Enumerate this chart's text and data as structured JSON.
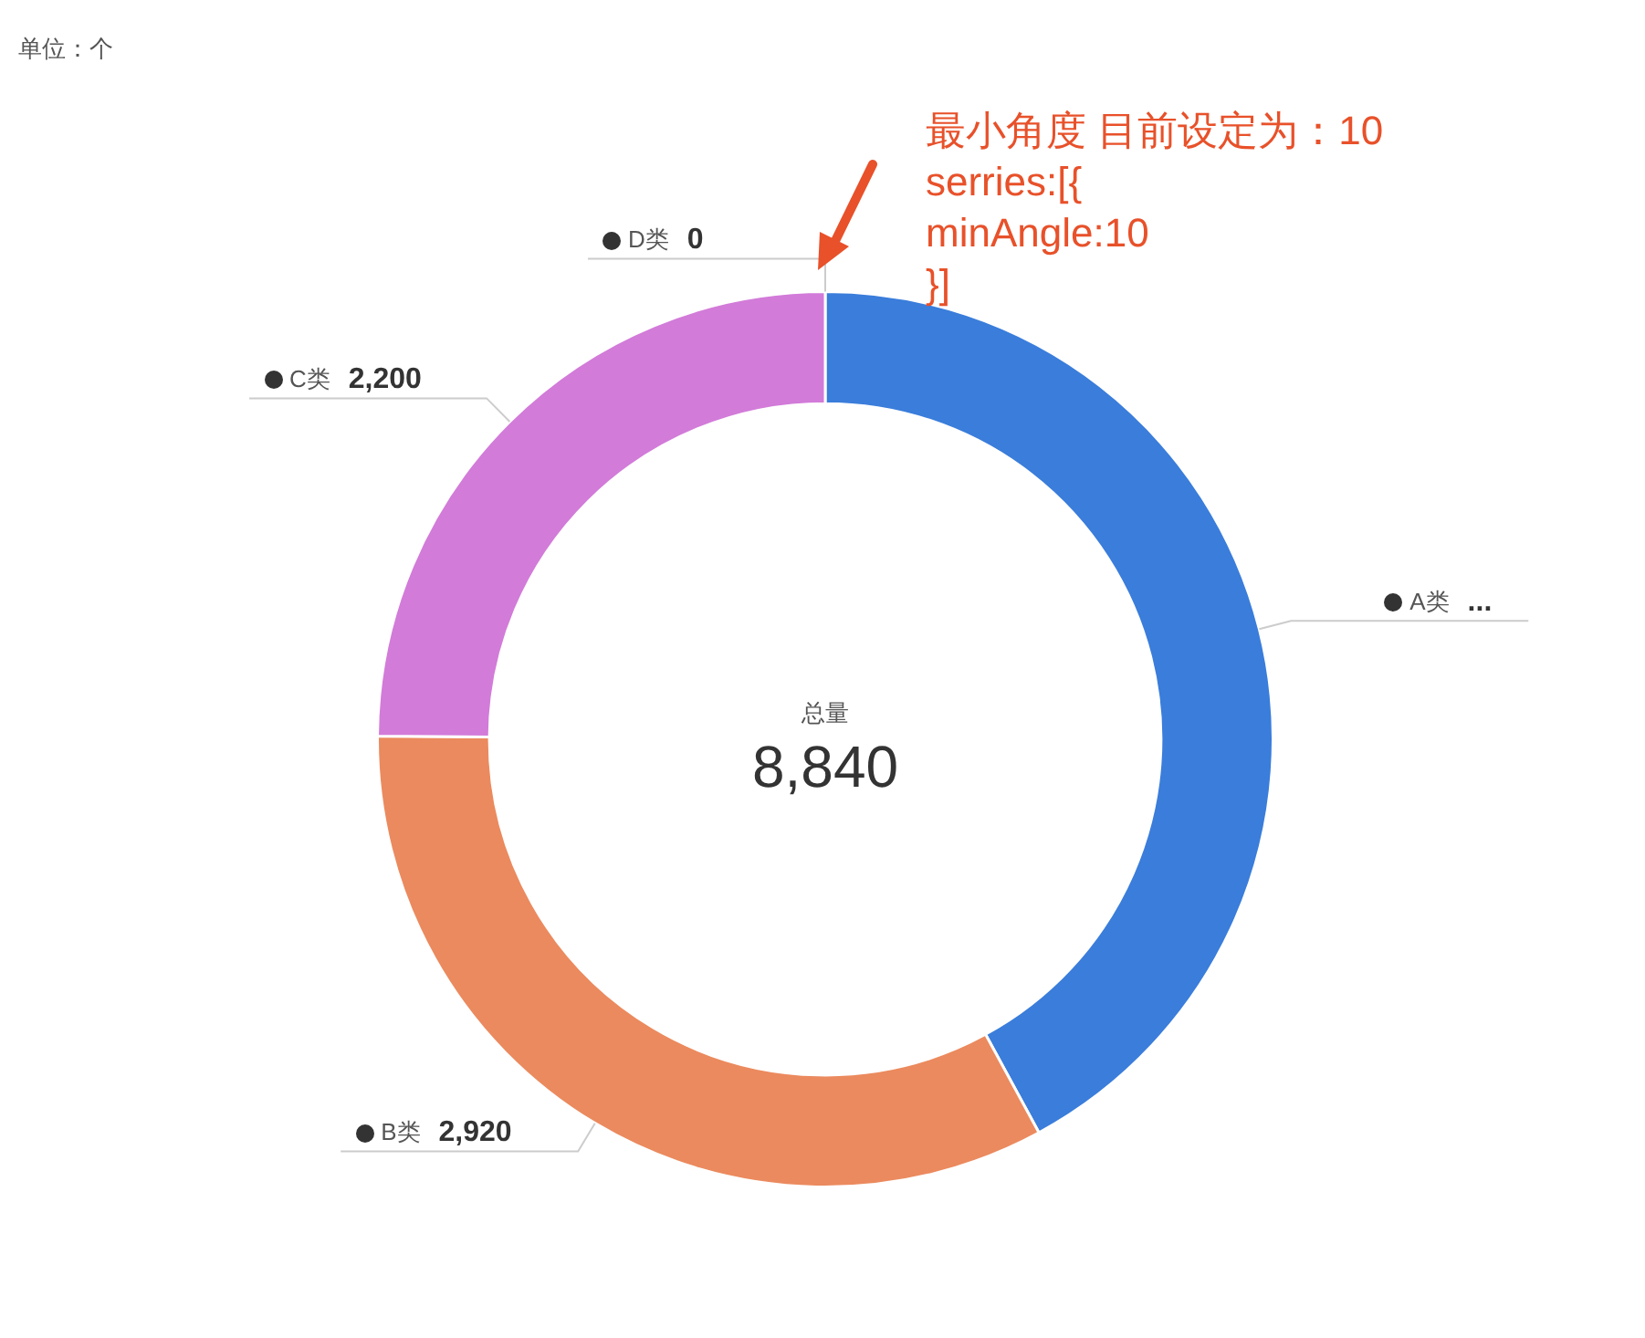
{
  "chart_data": {
    "type": "donut",
    "categories": [
      "A类",
      "B类",
      "C类",
      "D类"
    ],
    "values": [
      3720,
      2920,
      2200,
      0
    ],
    "value_labels": [
      "...",
      "2,920",
      "2,200",
      "0"
    ],
    "colors": [
      "#3a7ddb",
      "#eb8a5e",
      "#d27bd9",
      "#e5566e"
    ],
    "annotations": [
      "单位：个",
      "总量",
      "8,840",
      "最小角度 目前设定为：10\nserries:[{\nminAngle:10\n}]"
    ]
  }
}
